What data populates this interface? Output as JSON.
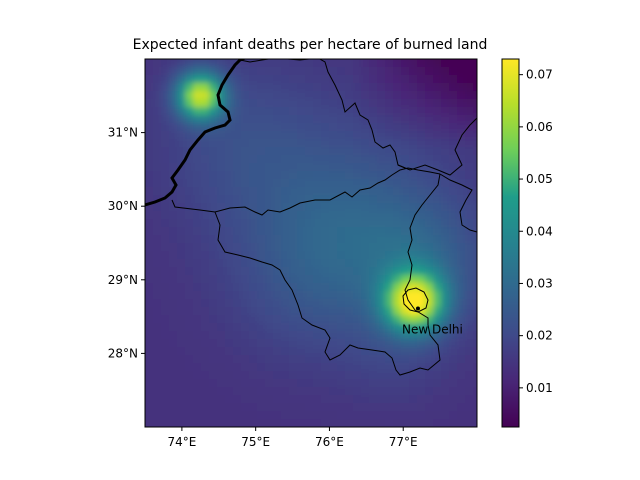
{
  "title": "Expected infant deaths per hectare of burned land",
  "map": {
    "lon_range": [
      73.5,
      78.0
    ],
    "lat_range": [
      27.0,
      32.0
    ],
    "x_ticks": [
      {
        "value": 74,
        "label": "74°E"
      },
      {
        "value": 75,
        "label": "75°E"
      },
      {
        "value": 76,
        "label": "76°E"
      },
      {
        "value": 77,
        "label": "77°E"
      }
    ],
    "y_ticks": [
      {
        "value": 28,
        "label": "28°N"
      },
      {
        "value": 29,
        "label": "29°N"
      },
      {
        "value": 30,
        "label": "30°N"
      },
      {
        "value": 31,
        "label": "31°N"
      }
    ],
    "city": {
      "name": "New Delhi",
      "lon": 77.2,
      "lat": 28.61
    },
    "hotspots": [
      {
        "lon": 77.15,
        "lat": 28.7,
        "value": 0.072,
        "spread": 0.28
      },
      {
        "lon": 74.25,
        "lat": 31.5,
        "value": 0.07,
        "spread": 0.22
      },
      {
        "lon": 77.3,
        "lat": 29.2,
        "value": 0.038,
        "spread": 0.6
      },
      {
        "lon": 76.3,
        "lat": 29.8,
        "value": 0.034,
        "spread": 0.9
      },
      {
        "lon": 74.8,
        "lat": 30.9,
        "value": 0.033,
        "spread": 0.8
      },
      {
        "lon": 75.7,
        "lat": 28.9,
        "value": 0.028,
        "spread": 0.7
      },
      {
        "lon": 76.9,
        "lat": 28.0,
        "value": 0.026,
        "spread": 0.5
      }
    ],
    "colors": {
      "international_border": "#000000",
      "state_border": "#000000"
    }
  },
  "colorbar": {
    "range": [
      0.0025,
      0.073
    ],
    "ticks": [
      {
        "value": 0.01,
        "label": "0.01"
      },
      {
        "value": 0.02,
        "label": "0.02"
      },
      {
        "value": 0.03,
        "label": "0.03"
      },
      {
        "value": 0.04,
        "label": "0.04"
      },
      {
        "value": 0.05,
        "label": "0.05"
      },
      {
        "value": 0.06,
        "label": "0.06"
      },
      {
        "value": 0.07,
        "label": "0.07"
      }
    ],
    "colormap": [
      "#440154",
      "#482777",
      "#3f4a8a",
      "#31678e",
      "#26838f",
      "#1f9d8a",
      "#6cce5a",
      "#b6de2b",
      "#fee825"
    ]
  }
}
